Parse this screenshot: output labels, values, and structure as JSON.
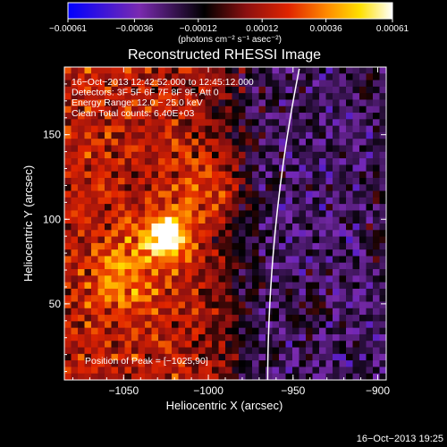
{
  "chart_data": {
    "type": "heatmap",
    "title": "Reconstructed RHESSI Image",
    "xlabel": "Heliocentric X (arcsec)",
    "ylabel": "Heliocentric Y (arcsec)",
    "xlim": [
      -1085,
      -895
    ],
    "ylim": [
      5,
      190
    ],
    "xticks": [
      -1050,
      -1000,
      -950,
      -900
    ],
    "xtick_labels": [
      "−1050",
      "−1000",
      "−950",
      "−900"
    ],
    "yticks": [
      50,
      100,
      150
    ],
    "ytick_labels": [
      "50",
      "100",
      "150"
    ],
    "colorbar": {
      "range": [
        -0.00061,
        0.00061
      ],
      "ticks": [
        -0.00061,
        -0.00036,
        -0.00012,
        0.00012,
        0.00036,
        0.00061
      ],
      "tick_labels": [
        "−0.00061",
        "−0.00036",
        "−0.00012",
        "0.00012",
        "0.00036",
        "0.00061"
      ],
      "unit_label": "(photons cm⁻² s⁻¹ asec⁻²)",
      "colors": [
        "#0000ff",
        "#7a2ab0",
        "#000000",
        "#8c1010",
        "#e02400",
        "#ff8c00",
        "#ffe000",
        "#ffffff"
      ]
    },
    "annotations": [
      "16−Oct−2013 12:42:52.000 to 12:45:12.000",
      "Detectors: 3F 5F 6F 7F 8F 9F, Att 0",
      "Energy Range: 12.0 − 25.0 keV",
      "Clean     Total counts: 6.40E+03"
    ],
    "peak_label": "Position of Peak = [−1025,90]",
    "peak": {
      "x": -1025,
      "y": 90
    },
    "limb_color": "#ffffff",
    "timestamp": "16−Oct−2013 19:25",
    "grid": false
  }
}
